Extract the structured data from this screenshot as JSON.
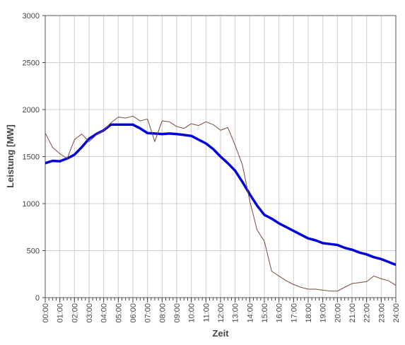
{
  "chart_data": {
    "type": "line",
    "x_label": "Zeit",
    "y_label": "Leistung [MW]",
    "x": [
      0,
      0.5,
      1,
      1.5,
      2,
      2.5,
      3,
      3.5,
      4,
      4.5,
      5,
      5.5,
      6,
      6.5,
      7,
      7.5,
      8,
      8.5,
      9,
      9.5,
      10,
      10.5,
      11,
      11.5,
      12,
      12.5,
      13,
      13.5,
      14,
      14.5,
      15,
      15.5,
      16,
      16.5,
      17,
      17.5,
      18,
      18.5,
      19,
      19.5,
      20,
      20.5,
      21,
      21.5,
      22,
      22.5,
      23,
      23.5,
      24
    ],
    "series": [
      {
        "color": "#0000dd",
        "width": 3.5,
        "values": [
          1430,
          1455,
          1450,
          1480,
          1520,
          1600,
          1690,
          1740,
          1780,
          1840,
          1840,
          1840,
          1840,
          1800,
          1750,
          1745,
          1740,
          1745,
          1740,
          1730,
          1720,
          1680,
          1640,
          1580,
          1500,
          1430,
          1350,
          1230,
          1100,
          980,
          880,
          840,
          790,
          750,
          710,
          670,
          630,
          610,
          580,
          570,
          560,
          530,
          510,
          480,
          460,
          430,
          410,
          380,
          350
        ]
      },
      {
        "color": "#7a4a3a",
        "width": 1,
        "values": [
          1750,
          1600,
          1530,
          1480,
          1680,
          1740,
          1660,
          1730,
          1780,
          1860,
          1920,
          1910,
          1930,
          1880,
          1900,
          1660,
          1880,
          1870,
          1820,
          1800,
          1850,
          1830,
          1870,
          1840,
          1780,
          1810,
          1620,
          1410,
          1030,
          720,
          600,
          280,
          230,
          180,
          140,
          110,
          90,
          90,
          80,
          70,
          70,
          110,
          150,
          160,
          170,
          230,
          200,
          180,
          130
        ]
      }
    ],
    "xlim": [
      0,
      24
    ],
    "xticks": [
      {
        "value": 0,
        "label": "00:00"
      },
      {
        "value": 1,
        "label": "01:00"
      },
      {
        "value": 2,
        "label": "02:00"
      },
      {
        "value": 3,
        "label": "03:00"
      },
      {
        "value": 4,
        "label": "04:00"
      },
      {
        "value": 5,
        "label": "05:00"
      },
      {
        "value": 6,
        "label": "06:00"
      },
      {
        "value": 7,
        "label": "07:00"
      },
      {
        "value": 8,
        "label": "08:00"
      },
      {
        "value": 9,
        "label": "09:00"
      },
      {
        "value": 10,
        "label": "10:00"
      },
      {
        "value": 11,
        "label": "11:00"
      },
      {
        "value": 12,
        "label": "12:00"
      },
      {
        "value": 13,
        "label": "13:00"
      },
      {
        "value": 14,
        "label": "14:00"
      },
      {
        "value": 15,
        "label": "15:00"
      },
      {
        "value": 16,
        "label": "16:00"
      },
      {
        "value": 17,
        "label": "17:00"
      },
      {
        "value": 18,
        "label": "18:00"
      },
      {
        "value": 19,
        "label": "19:00"
      },
      {
        "value": 20,
        "label": "20:00"
      },
      {
        "value": 21,
        "label": "21:00"
      },
      {
        "value": 22,
        "label": "22:00"
      },
      {
        "value": 23,
        "label": "23:00"
      },
      {
        "value": 24,
        "label": "24:00"
      }
    ],
    "ylim": [
      0,
      3000
    ],
    "yticks": [
      0,
      500,
      1000,
      1500,
      2000,
      2500,
      3000
    ],
    "grid": true
  }
}
